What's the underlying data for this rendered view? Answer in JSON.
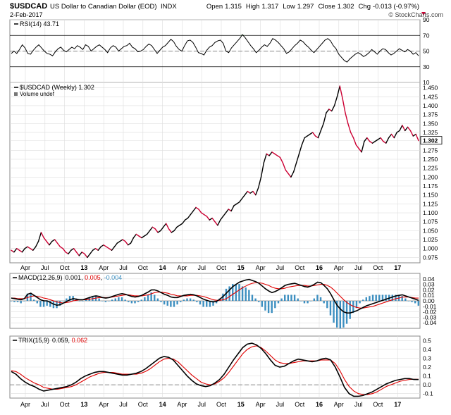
{
  "header": {
    "symbol": "$USDCAD",
    "name": "US Dollar to Canadian Dollar (EOD)",
    "exchange": "INDX",
    "date": "2-Feb-2017",
    "open_label": "Open",
    "open": "1.315",
    "high_label": "High",
    "high": "1.317",
    "low_label": "Low",
    "low": "1.297",
    "close_label": "Close",
    "close": "1.302",
    "chg_label": "Chg",
    "chg": "-0.013 (-0.97%)",
    "watermark": "© StockCharts.com"
  },
  "colors": {
    "price_up": "#000000",
    "price_down": "#cc0033",
    "rsi_fill": "#4f8a4f",
    "macd_signal": "#e00000",
    "histogram": "#3d8fc0",
    "trix_signal": "#e00000",
    "grid": "#dddddd",
    "axis": "#000000"
  },
  "x_axis_labels": [
    "Apr",
    "Jul",
    "Oct",
    "13",
    "Apr",
    "Jul",
    "Oct",
    "14",
    "Apr",
    "Jul",
    "Oct",
    "15",
    "Apr",
    "Jul",
    "Oct",
    "16",
    "Apr",
    "Jul",
    "Oct",
    "17"
  ],
  "chart_data": [
    {
      "type": "line",
      "name": "RSI(14)",
      "title": "RSI(14) 43.71",
      "last": "43.71",
      "ylim": [
        10,
        90
      ],
      "ticks": [
        "90",
        "70",
        "50",
        "30",
        "10"
      ],
      "reference_lines": [
        70,
        30
      ],
      "values": [
        47,
        50,
        47,
        52,
        58,
        54,
        47,
        46,
        51,
        55,
        58,
        54,
        50,
        47,
        46,
        44,
        49,
        53,
        55,
        51,
        49,
        52,
        55,
        53,
        57,
        55,
        52,
        58,
        56,
        50,
        53,
        56,
        58,
        55,
        52,
        48,
        54,
        57,
        55,
        50,
        53,
        56,
        57,
        60,
        55,
        53,
        49,
        50,
        52,
        56,
        59,
        57,
        52,
        47,
        51,
        55,
        57,
        61,
        65,
        62,
        56,
        52,
        50,
        57,
        63,
        64,
        61,
        55,
        48,
        47,
        45,
        51,
        55,
        57,
        61,
        63,
        64,
        60,
        50,
        48,
        54,
        58,
        62,
        66,
        71,
        67,
        62,
        57,
        53,
        48,
        51,
        55,
        58,
        56,
        60,
        66,
        64,
        61,
        57,
        53,
        47,
        49,
        53,
        57,
        60,
        64,
        62,
        58,
        55,
        51,
        48,
        52,
        56,
        60,
        64,
        66,
        63,
        57,
        53,
        46,
        42,
        38,
        36,
        40,
        43,
        46,
        48,
        46,
        43,
        45,
        48,
        52,
        49,
        46,
        50,
        53,
        52,
        48,
        45,
        47,
        50,
        53,
        51,
        49,
        52,
        50,
        46,
        48,
        44
      ]
    },
    {
      "type": "line",
      "name": "$USDCAD (Weekly)",
      "title": "$USDCAD (Weekly) 1.302",
      "legend2": "Volume undef",
      "last": "1.302",
      "ylim": [
        0.96,
        1.465
      ],
      "ticks": [
        "1.450",
        "1.425",
        "1.400",
        "1.375",
        "1.350",
        "1.325",
        "1.302",
        "1.275",
        "1.250",
        "1.225",
        "1.200",
        "1.175",
        "1.150",
        "1.125",
        "1.100",
        "1.075",
        "1.050",
        "1.025",
        "1.000",
        "0.975"
      ],
      "values": [
        0.995,
        0.99,
        1.0,
        0.995,
        0.99,
        1.0,
        1.005,
        1.0,
        0.995,
        1.005,
        1.02,
        1.045,
        1.03,
        1.02,
        1.01,
        1.02,
        1.025,
        1.015,
        1.005,
        1.0,
        0.99,
        0.985,
        0.995,
        1.0,
        0.99,
        0.98,
        0.99,
        0.985,
        0.975,
        0.985,
        0.995,
        1.0,
        0.995,
        1.005,
        1.01,
        1.005,
        1.0,
        0.995,
        1.005,
        1.015,
        1.02,
        1.025,
        1.02,
        1.01,
        1.015,
        1.03,
        1.04,
        1.035,
        1.03,
        1.035,
        1.04,
        1.05,
        1.06,
        1.055,
        1.045,
        1.05,
        1.06,
        1.07,
        1.055,
        1.045,
        1.05,
        1.06,
        1.065,
        1.07,
        1.08,
        1.085,
        1.095,
        1.105,
        1.115,
        1.11,
        1.1,
        1.095,
        1.09,
        1.08,
        1.085,
        1.075,
        1.065,
        1.08,
        1.09,
        1.1,
        1.11,
        1.105,
        1.12,
        1.125,
        1.13,
        1.14,
        1.15,
        1.16,
        1.155,
        1.16,
        1.15,
        1.17,
        1.2,
        1.24,
        1.265,
        1.26,
        1.27,
        1.265,
        1.26,
        1.255,
        1.24,
        1.22,
        1.21,
        1.2,
        1.215,
        1.24,
        1.265,
        1.29,
        1.31,
        1.315,
        1.32,
        1.325,
        1.315,
        1.31,
        1.33,
        1.35,
        1.38,
        1.39,
        1.385,
        1.4,
        1.425,
        1.455,
        1.42,
        1.38,
        1.35,
        1.325,
        1.31,
        1.29,
        1.28,
        1.27,
        1.3,
        1.31,
        1.3,
        1.295,
        1.3,
        1.305,
        1.31,
        1.3,
        1.295,
        1.31,
        1.32,
        1.31,
        1.325,
        1.33,
        1.345,
        1.33,
        1.34,
        1.33,
        1.315,
        1.32,
        1.302
      ]
    },
    {
      "type": "line",
      "name": "MACD(12,26,9)",
      "title_parts": [
        "MACD(12,26,9)",
        "0.001",
        "0.005",
        "-0.004"
      ],
      "last": "0.001",
      "signal_last": "0.005",
      "hist_last": "-0.004",
      "ylim": [
        -0.05,
        0.05
      ],
      "ticks": [
        "0.04",
        "0.03",
        "0.02",
        "0.01",
        "0.00",
        "-0.01",
        "-0.02",
        "-0.03",
        "-0.04"
      ],
      "series": [
        {
          "name": "MACD",
          "values": [
            0.005,
            0.004,
            0.003,
            0.002,
            0.004,
            0.012,
            0.014,
            0.01,
            0.006,
            0.002,
            0.0,
            0.0,
            -0.003,
            -0.006,
            -0.008,
            -0.007,
            -0.004,
            -0.001,
            0.002,
            0.004,
            0.003,
            0.002,
            0.002,
            0.004,
            0.006,
            0.008,
            0.009,
            0.008,
            0.006,
            0.005,
            0.006,
            0.008,
            0.01,
            0.012,
            0.013,
            0.012,
            0.01,
            0.008,
            0.007,
            0.008,
            0.01,
            0.013,
            0.016,
            0.02,
            0.02,
            0.018,
            0.015,
            0.012,
            0.01,
            0.007,
            0.006,
            0.006,
            0.008,
            0.01,
            0.011,
            0.012,
            0.011,
            0.009,
            0.006,
            0.003,
            0.001,
            -0.001,
            -0.002,
            -0.001,
            0.003,
            0.008,
            0.014,
            0.02,
            0.026,
            0.03,
            0.034,
            0.036,
            0.038,
            0.039,
            0.037,
            0.035,
            0.032,
            0.027,
            0.022,
            0.018,
            0.015,
            0.017,
            0.02,
            0.024,
            0.028,
            0.03,
            0.031,
            0.032,
            0.03,
            0.028,
            0.026,
            0.025,
            0.027,
            0.03,
            0.034,
            0.033,
            0.028,
            0.022,
            0.013,
            0.002,
            -0.008,
            -0.015,
            -0.02,
            -0.022,
            -0.022,
            -0.02,
            -0.018,
            -0.015,
            -0.012,
            -0.009,
            -0.007,
            -0.005,
            -0.003,
            -0.001,
            0.001,
            0.003,
            0.005,
            0.007,
            0.009,
            0.01,
            0.011,
            0.009,
            0.007,
            0.005,
            0.003,
            0.001
          ]
        },
        {
          "name": "Signal",
          "values": [
            0.005,
            0.005,
            0.004,
            0.004,
            0.004,
            0.006,
            0.008,
            0.009,
            0.008,
            0.007,
            0.005,
            0.004,
            0.002,
            0.0,
            -0.002,
            -0.003,
            -0.004,
            -0.003,
            -0.002,
            0.0,
            0.001,
            0.002,
            0.002,
            0.002,
            0.003,
            0.004,
            0.005,
            0.006,
            0.006,
            0.006,
            0.006,
            0.007,
            0.008,
            0.009,
            0.01,
            0.011,
            0.011,
            0.01,
            0.009,
            0.009,
            0.009,
            0.01,
            0.011,
            0.013,
            0.015,
            0.016,
            0.016,
            0.015,
            0.014,
            0.012,
            0.011,
            0.009,
            0.009,
            0.009,
            0.009,
            0.01,
            0.01,
            0.01,
            0.009,
            0.008,
            0.006,
            0.004,
            0.002,
            0.001,
            0.001,
            0.002,
            0.004,
            0.008,
            0.012,
            0.016,
            0.02,
            0.024,
            0.027,
            0.03,
            0.032,
            0.033,
            0.033,
            0.032,
            0.03,
            0.028,
            0.025,
            0.023,
            0.022,
            0.022,
            0.023,
            0.025,
            0.026,
            0.027,
            0.028,
            0.028,
            0.028,
            0.027,
            0.027,
            0.028,
            0.029,
            0.03,
            0.03,
            0.028,
            0.025,
            0.02,
            0.014,
            0.008,
            0.002,
            -0.003,
            -0.007,
            -0.01,
            -0.012,
            -0.013,
            -0.013,
            -0.012,
            -0.011,
            -0.01,
            -0.008,
            -0.006,
            -0.004,
            -0.002,
            0.0,
            0.002,
            0.004,
            0.005,
            0.007,
            0.007,
            0.007,
            0.006,
            0.005,
            0.005
          ]
        }
      ]
    },
    {
      "type": "line",
      "name": "TRIX(15,9)",
      "title_parts": [
        "TRIX(15,9)",
        "0.059",
        "0.062"
      ],
      "last": "0.059",
      "signal_last": "0.062",
      "ylim": [
        -0.15,
        0.55
      ],
      "ticks": [
        "0.5",
        "0.4",
        "0.3",
        "0.2",
        "0.1",
        "0.0",
        "-0.1"
      ],
      "series": [
        {
          "name": "TRIX",
          "values": [
            0.15,
            0.12,
            0.07,
            0.03,
            0.0,
            -0.02,
            -0.05,
            -0.07,
            -0.06,
            -0.05,
            -0.04,
            -0.03,
            -0.02,
            0.0,
            0.03,
            0.07,
            0.1,
            0.12,
            0.14,
            0.15,
            0.15,
            0.14,
            0.13,
            0.12,
            0.11,
            0.11,
            0.12,
            0.13,
            0.15,
            0.18,
            0.22,
            0.26,
            0.3,
            0.32,
            0.31,
            0.28,
            0.22,
            0.16,
            0.1,
            0.05,
            0.01,
            -0.01,
            -0.02,
            -0.01,
            0.02,
            0.06,
            0.12,
            0.2,
            0.28,
            0.35,
            0.42,
            0.46,
            0.47,
            0.45,
            0.41,
            0.35,
            0.28,
            0.22,
            0.2,
            0.21,
            0.24,
            0.27,
            0.29,
            0.28,
            0.27,
            0.26,
            0.27,
            0.29,
            0.3,
            0.28,
            0.2,
            0.09,
            -0.03,
            -0.1,
            -0.13,
            -0.13,
            -0.12,
            -0.1,
            -0.08,
            -0.05,
            -0.02,
            0.01,
            0.03,
            0.05,
            0.06,
            0.07,
            0.07,
            0.06,
            0.059
          ]
        },
        {
          "name": "Signal",
          "values": [
            0.16,
            0.15,
            0.12,
            0.08,
            0.05,
            0.02,
            0.0,
            -0.03,
            -0.04,
            -0.05,
            -0.05,
            -0.04,
            -0.03,
            -0.02,
            0.0,
            0.03,
            0.06,
            0.09,
            0.11,
            0.13,
            0.14,
            0.14,
            0.14,
            0.13,
            0.12,
            0.12,
            0.12,
            0.12,
            0.13,
            0.15,
            0.18,
            0.22,
            0.26,
            0.29,
            0.3,
            0.29,
            0.26,
            0.21,
            0.16,
            0.11,
            0.07,
            0.03,
            0.01,
            0.0,
            0.01,
            0.04,
            0.08,
            0.14,
            0.21,
            0.28,
            0.35,
            0.4,
            0.43,
            0.44,
            0.42,
            0.38,
            0.33,
            0.28,
            0.25,
            0.24,
            0.24,
            0.25,
            0.26,
            0.27,
            0.27,
            0.27,
            0.27,
            0.28,
            0.28,
            0.28,
            0.24,
            0.16,
            0.06,
            -0.02,
            -0.07,
            -0.1,
            -0.11,
            -0.11,
            -0.1,
            -0.08,
            -0.05,
            -0.02,
            0.0,
            0.02,
            0.04,
            0.05,
            0.06,
            0.062,
            0.062
          ]
        }
      ]
    }
  ]
}
